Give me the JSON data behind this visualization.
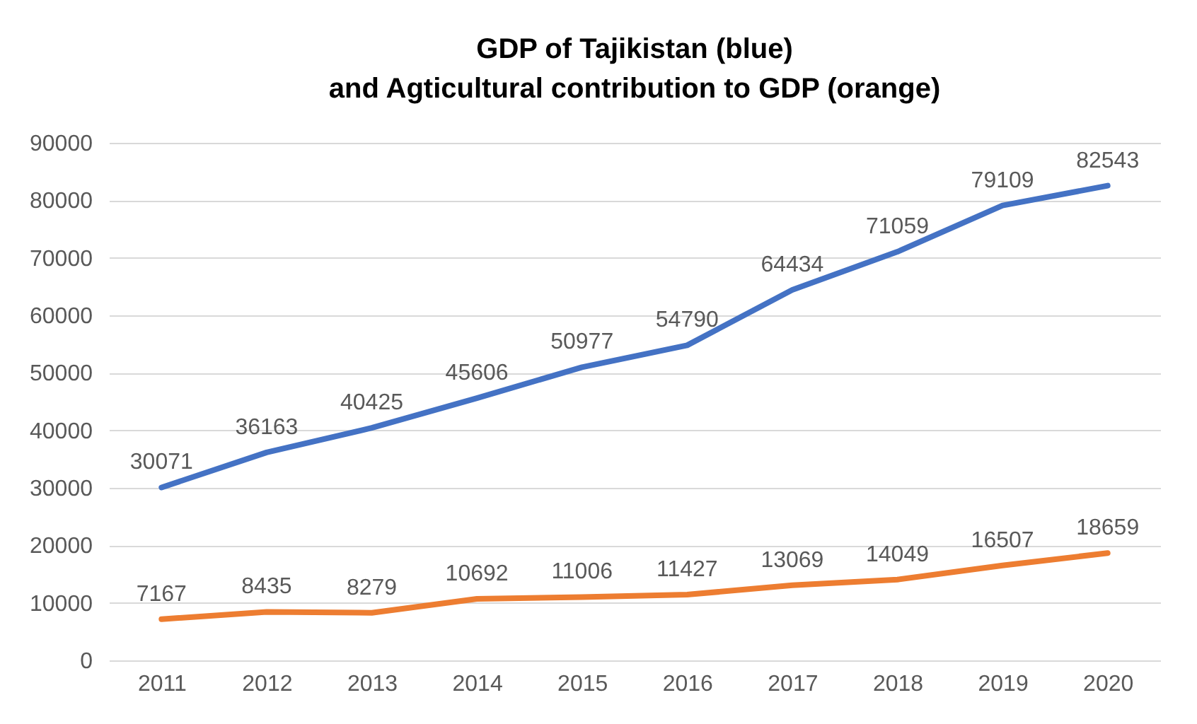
{
  "chart_data": {
    "type": "line",
    "title": "GDP of Tajikistan (blue)\nand Agticultural contribution to GDP (orange)",
    "categories": [
      "2011",
      "2012",
      "2013",
      "2014",
      "2015",
      "2016",
      "2017",
      "2018",
      "2019",
      "2020"
    ],
    "series": [
      {
        "color": "#4472c4",
        "values": [
          30071,
          36163,
          40425,
          45606,
          50977,
          54790,
          64434,
          71059,
          79109,
          82543
        ]
      },
      {
        "color": "#ed7d31",
        "values": [
          7167,
          8435,
          8279,
          10692,
          11006,
          11427,
          13069,
          14049,
          16507,
          18659
        ]
      }
    ],
    "ylim": [
      0,
      90000
    ],
    "yticks": [
      0,
      10000,
      20000,
      30000,
      40000,
      50000,
      60000,
      70000,
      80000,
      90000
    ],
    "grid": "y",
    "legend": false,
    "marker": "none",
    "line_style": "solid",
    "data_labels": true
  }
}
